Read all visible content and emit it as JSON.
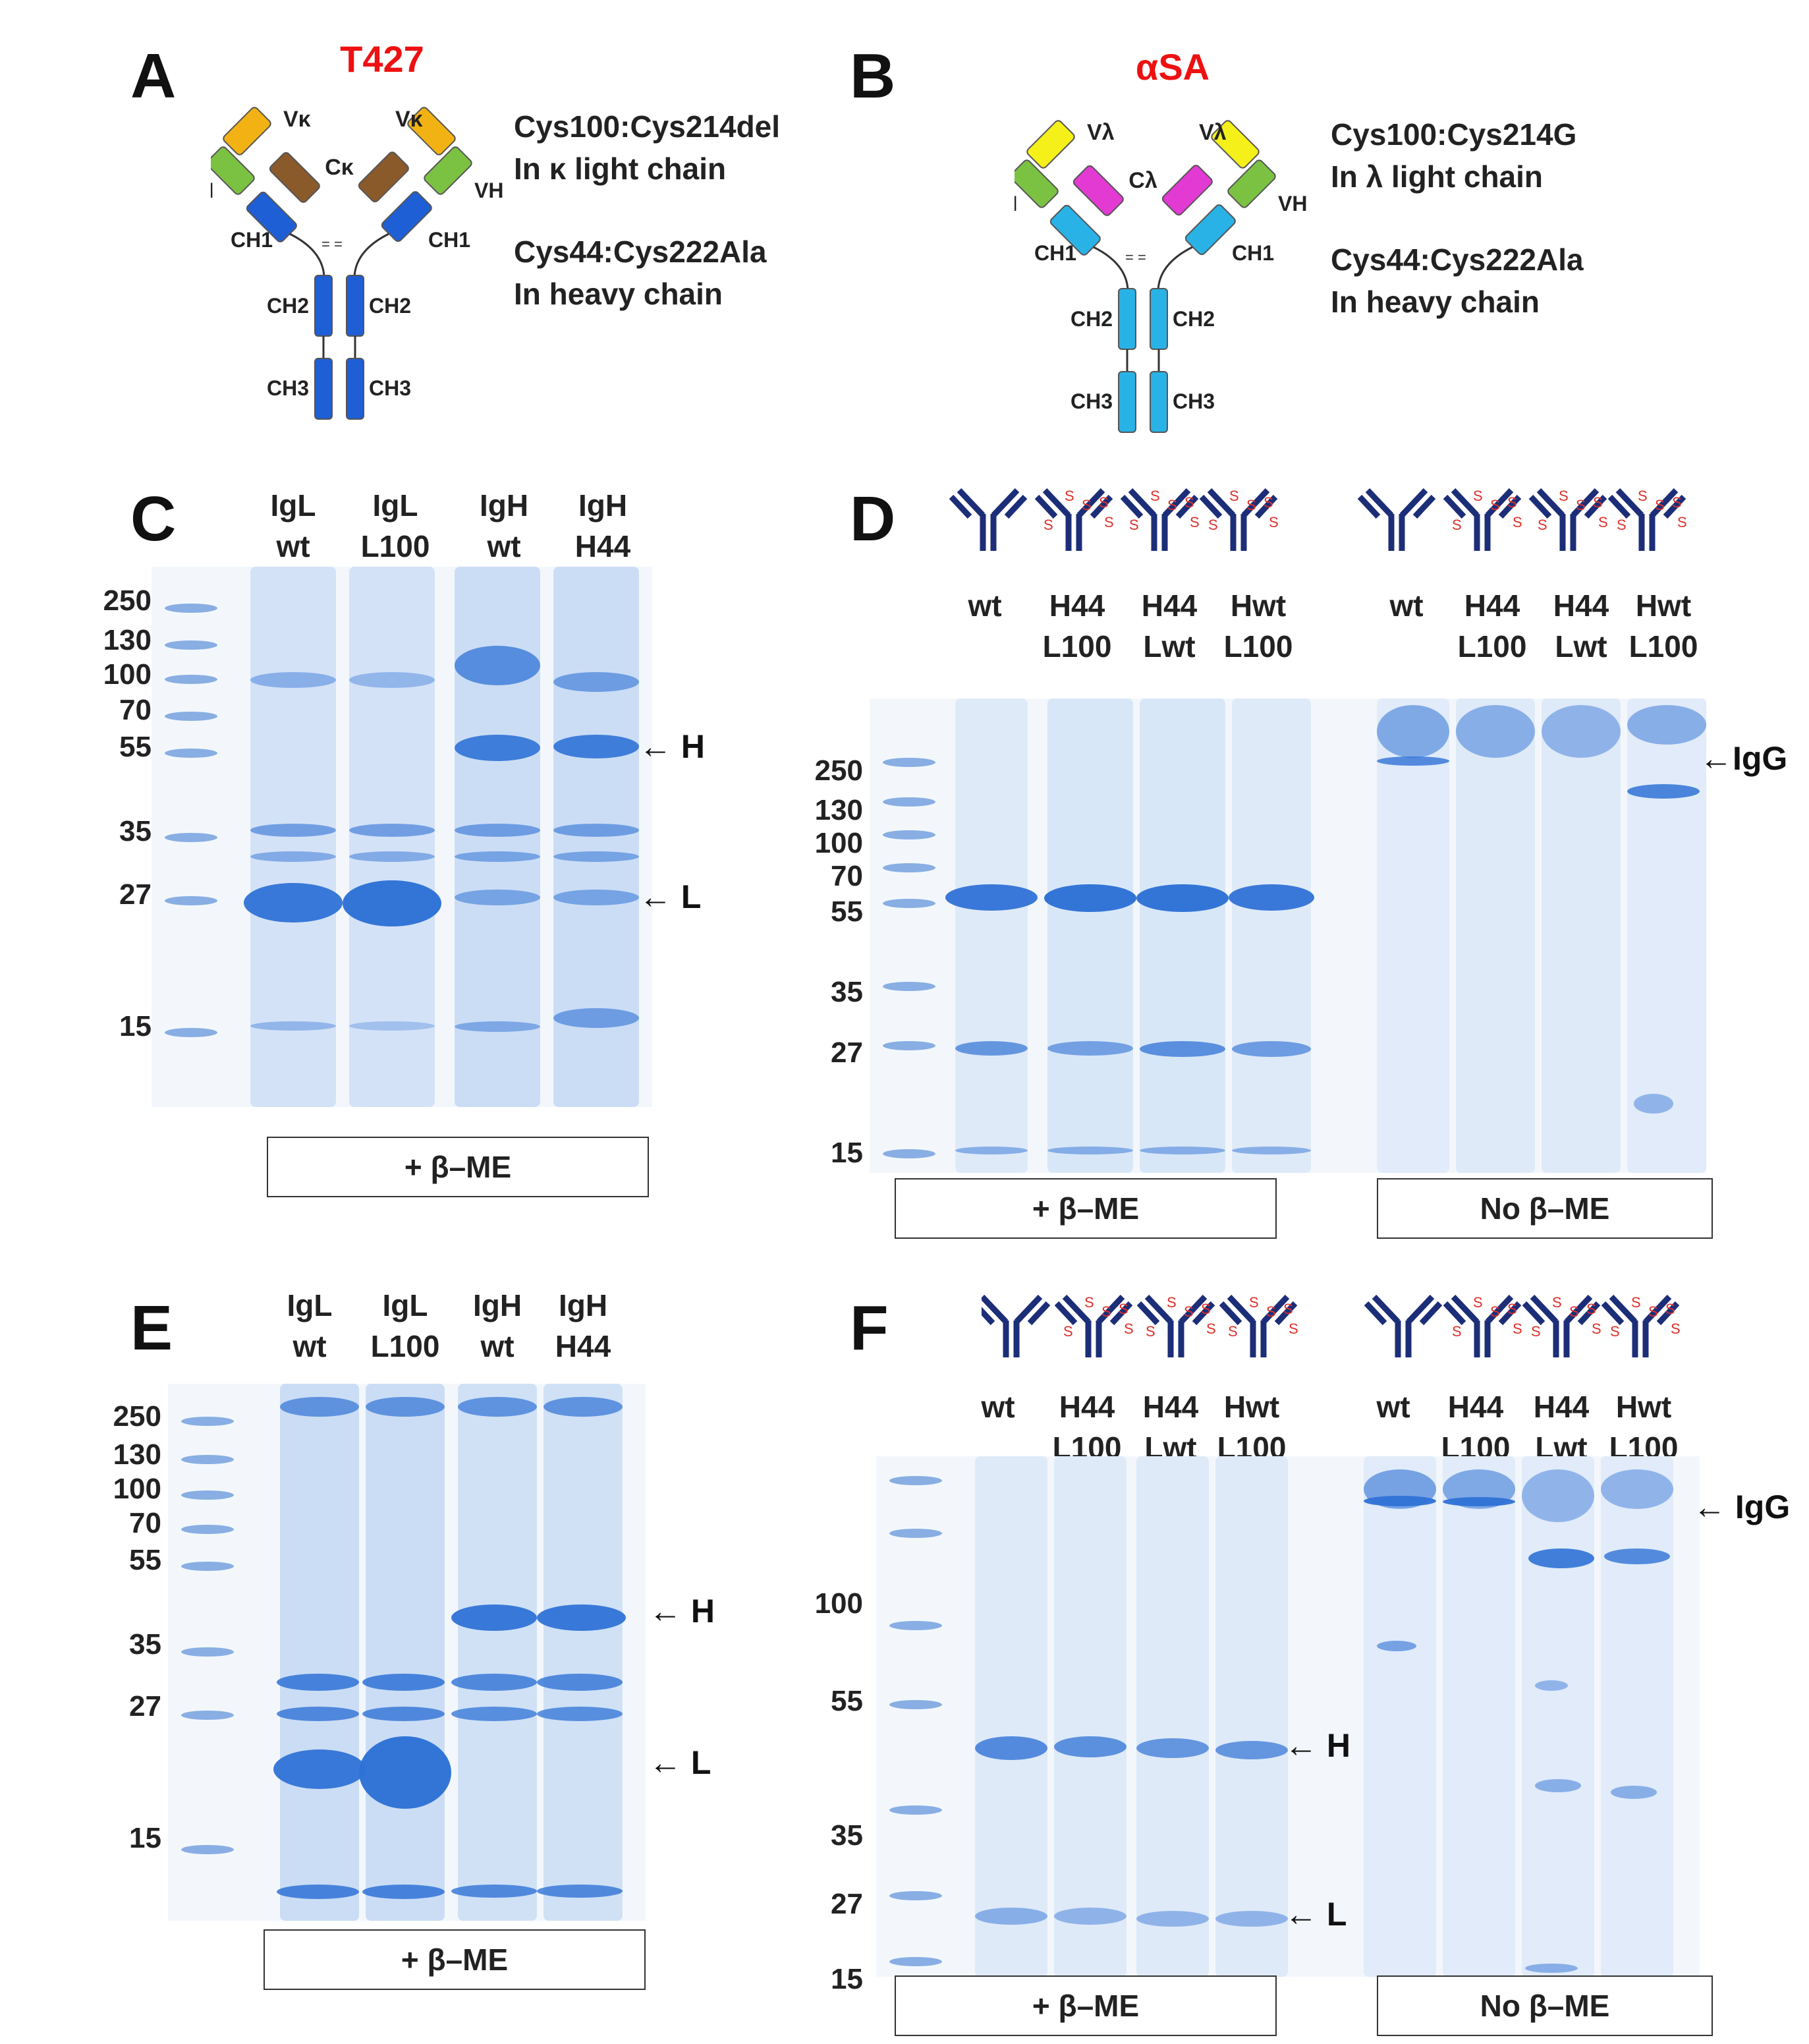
{
  "panels": {
    "A": {
      "letter": "A",
      "title": "T427",
      "domains": {
        "vk": "Vκ",
        "ck": "Cκ",
        "vh": "VH",
        "ch1": "CH1",
        "ch2": "CH2",
        "ch3": "CH3"
      },
      "note1_line1": "Cys100:Cys214del",
      "note1_line2": "In κ light chain",
      "note2_line1": "Cys44:Cys222Ala",
      "note2_line2": "In heavy chain"
    },
    "B": {
      "letter": "B",
      "title": "αSA",
      "domains": {
        "vl": "Vλ",
        "cl": "Cλ",
        "vh": "VH",
        "ch1": "CH1",
        "ch2": "CH2",
        "ch3": "CH3"
      },
      "note1_line1": "Cys100:Cys214G",
      "note1_line2": "In λ light chain",
      "note2_line1": "Cys44:Cys222Ala",
      "note2_line2": "In heavy chain"
    },
    "C": {
      "letter": "C",
      "lanes": [
        {
          "top": "IgL",
          "bottom": "wt"
        },
        {
          "top": "IgL",
          "bottom": "L100"
        },
        {
          "top": "IgH",
          "bottom": "wt"
        },
        {
          "top": "IgH",
          "bottom": "H44"
        }
      ],
      "markers": [
        "250",
        "130",
        "100",
        "70",
        "55",
        "35",
        "27",
        "15"
      ],
      "band_labels": [
        "H",
        "L"
      ],
      "condition": "+ β–ME"
    },
    "D": {
      "letter": "D",
      "lanes_left": [
        {
          "top": "wt",
          "bottom": ""
        },
        {
          "top": "H44",
          "bottom": "L100"
        },
        {
          "top": "H44",
          "bottom": "Lwt"
        },
        {
          "top": "Hwt",
          "bottom": "L100"
        }
      ],
      "lanes_right": [
        {
          "top": "wt",
          "bottom": ""
        },
        {
          "top": "H44",
          "bottom": "L100"
        },
        {
          "top": "H44",
          "bottom": "Lwt"
        },
        {
          "top": "Hwt",
          "bottom": "L100"
        }
      ],
      "markers": [
        "250",
        "130",
        "100",
        "70",
        "55",
        "35",
        "27",
        "15"
      ],
      "band_label": "IgG",
      "condition_left": "+ β–ME",
      "condition_right": "No β–ME"
    },
    "E": {
      "letter": "E",
      "lanes": [
        {
          "top": "IgL",
          "bottom": "wt"
        },
        {
          "top": "IgL",
          "bottom": "L100"
        },
        {
          "top": "IgH",
          "bottom": "wt"
        },
        {
          "top": "IgH",
          "bottom": "H44"
        }
      ],
      "markers": [
        "250",
        "130",
        "100",
        "70",
        "55",
        "35",
        "27",
        "15"
      ],
      "band_labels": [
        "H",
        "L"
      ],
      "condition": "+ β–ME"
    },
    "F": {
      "letter": "F",
      "lanes_left": [
        {
          "top": "wt",
          "bottom": ""
        },
        {
          "top": "H44",
          "bottom": "L100"
        },
        {
          "top": "H44",
          "bottom": "Lwt"
        },
        {
          "top": "Hwt",
          "bottom": "L100"
        }
      ],
      "lanes_right": [
        {
          "top": "wt",
          "bottom": ""
        },
        {
          "top": "H44",
          "bottom": "L100"
        },
        {
          "top": "H44",
          "bottom": "Lwt"
        },
        {
          "top": "Hwt",
          "bottom": "L100"
        }
      ],
      "markers": [
        "100",
        "55",
        "35",
        "27",
        "15"
      ],
      "band_labels": [
        "IgG",
        "H",
        "L"
      ],
      "condition_left": "+ β–ME",
      "condition_right": "No β–ME"
    }
  },
  "icon_names": [
    "antibody-icon",
    "antibody-disulfide-icon"
  ],
  "colors": {
    "kappa_V": "#f2b213",
    "kappa_C": "#8b5a2b",
    "lambda_V": "#f5f01a",
    "lambda_C": "#e23ad2",
    "VH": "#7cc242",
    "heavy_T427": "#1f5fd6",
    "heavy_aSA": "#29b2e6",
    "gel_bg": "#eef4fb",
    "band": "#3a7fdc",
    "title": "#ee1111",
    "antibody_icon": "#1c2e78",
    "disulfide": "#e0302a"
  }
}
